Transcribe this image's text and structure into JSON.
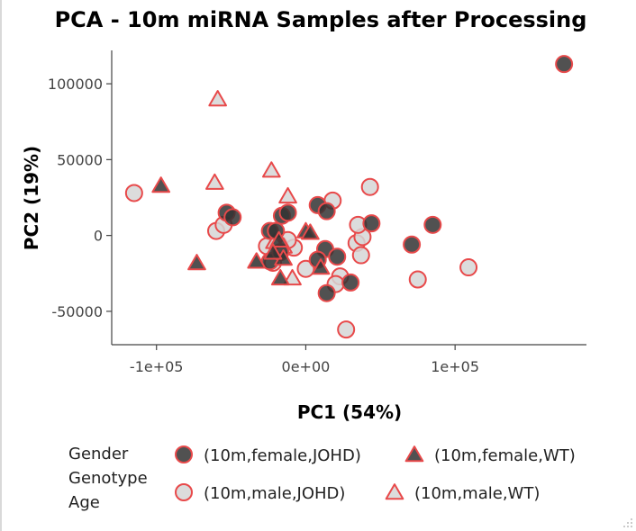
{
  "chart_data": {
    "type": "scatter",
    "title": "PCA - 10m miRNA Samples after Processing",
    "xlabel": "PC1 (54%)",
    "ylabel": "PC2 (19%)",
    "xlim": [
      -130000,
      188000
    ],
    "ylim": [
      -72000,
      122000
    ],
    "xticks": [
      {
        "value": -100000,
        "label": "-1e+05"
      },
      {
        "value": 0,
        "label": "0e+00"
      },
      {
        "value": 100000,
        "label": "1e+05"
      }
    ],
    "yticks": [
      {
        "value": 100000,
        "label": "100000"
      },
      {
        "value": 50000,
        "label": "50000"
      },
      {
        "value": 0,
        "label": "0"
      },
      {
        "value": -50000,
        "label": "-50000"
      }
    ],
    "grid": false,
    "legend_position": "bottom",
    "legend_titles": [
      "Gender",
      "Genotype",
      "Age"
    ],
    "colors": {
      "marker_outline": "#e8494a",
      "female_fill": "#333333",
      "male_fill": "#d6d6d6"
    },
    "series": [
      {
        "name": "(10m,female,JOHD)",
        "marker": "circle",
        "fill": "#333333",
        "points": [
          [
            173000,
            113000
          ],
          [
            -53000,
            15000
          ],
          [
            -49000,
            12000
          ],
          [
            -24000,
            3000
          ],
          [
            -20000,
            3000
          ],
          [
            -16000,
            13000
          ],
          [
            -12000,
            15000
          ],
          [
            8000,
            20000
          ],
          [
            14000,
            16000
          ],
          [
            13000,
            -9000
          ],
          [
            8000,
            -16000
          ],
          [
            21000,
            -14000
          ],
          [
            14000,
            -38000
          ],
          [
            30000,
            -31000
          ],
          [
            -24000,
            -17000
          ],
          [
            44000,
            8000
          ],
          [
            71000,
            -6000
          ],
          [
            85000,
            7000
          ],
          [
            -17000,
            -11000
          ]
        ]
      },
      {
        "name": "(10m,female,WT)",
        "marker": "triangle",
        "fill": "#333333",
        "points": [
          [
            -97000,
            33000
          ],
          [
            -73000,
            -18000
          ],
          [
            -33000,
            -17000
          ],
          [
            -18000,
            -3000
          ],
          [
            -15000,
            -15000
          ],
          [
            -17000,
            -28000
          ],
          [
            0,
            3000
          ],
          [
            3000,
            2000
          ],
          [
            10000,
            -21000
          ],
          [
            -22000,
            -11000
          ]
        ]
      },
      {
        "name": "(10m,male,JOHD)",
        "marker": "circle",
        "fill": "#d6d6d6",
        "points": [
          [
            -115000,
            28000
          ],
          [
            -60000,
            3000
          ],
          [
            -55000,
            7000
          ],
          [
            -26000,
            -7000
          ],
          [
            -22000,
            -18000
          ],
          [
            -18000,
            -6000
          ],
          [
            -8000,
            -8000
          ],
          [
            0,
            -22000
          ],
          [
            18000,
            23000
          ],
          [
            43000,
            32000
          ],
          [
            34000,
            -5000
          ],
          [
            38000,
            -1000
          ],
          [
            35000,
            7000
          ],
          [
            37000,
            -13000
          ],
          [
            23000,
            -27000
          ],
          [
            20000,
            -32000
          ],
          [
            75000,
            -29000
          ],
          [
            109000,
            -21000
          ],
          [
            27000,
            -62000
          ],
          [
            -12000,
            -3000
          ]
        ]
      },
      {
        "name": "(10m,male,WT)",
        "marker": "triangle",
        "fill": "#d6d6d6",
        "points": [
          [
            -59000,
            90000
          ],
          [
            -61000,
            35000
          ],
          [
            -23000,
            43000
          ],
          [
            -12000,
            26000
          ],
          [
            -33000,
            -17000
          ],
          [
            -9000,
            -28000
          ],
          [
            -21000,
            -4000
          ],
          [
            -15000,
            -7000
          ]
        ]
      }
    ]
  }
}
